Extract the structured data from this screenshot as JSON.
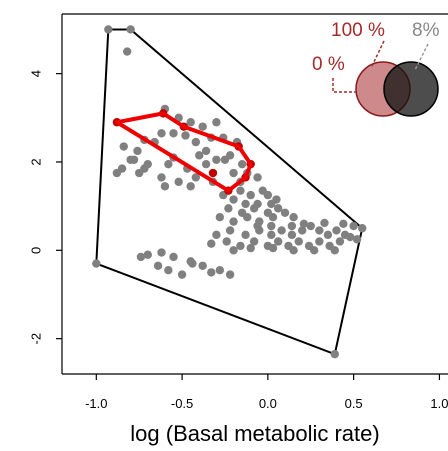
{
  "chart_data": {
    "type": "scatter",
    "title": "",
    "xlabel": "log (Basal metabolic rate)",
    "ylabel": "",
    "xlim": [
      -1.2,
      1.05
    ],
    "ylim": [
      -2.8,
      5.35
    ],
    "x_ticks": [
      -1.0,
      -0.5,
      0.0,
      0.5,
      1.0
    ],
    "x_tick_labels": [
      "-1.0",
      "-0.5",
      "0.0",
      "0.5",
      "1.0"
    ],
    "y_ticks": [
      -2,
      0,
      2,
      4
    ],
    "y_tick_labels": [
      "-2",
      "0",
      "2",
      "4"
    ],
    "grid": false,
    "colors": {
      "all_points": "#808080",
      "subset_hull": "#ee0000",
      "subset_points": "#c00000",
      "full_hull": "#000000",
      "legend_red": "#a52a2a",
      "legend_gray": "#555555"
    },
    "series": [
      {
        "points": [
          [
            -0.93,
            5.0
          ],
          [
            -0.8,
            5.0
          ],
          [
            -0.82,
            4.5
          ],
          [
            -0.72,
            2.5
          ],
          [
            -0.6,
            3.2
          ],
          [
            -0.52,
            3.0
          ],
          [
            -0.45,
            2.9
          ],
          [
            -0.38,
            2.8
          ],
          [
            -0.3,
            2.9
          ],
          [
            -0.62,
            2.65
          ],
          [
            -0.55,
            2.65
          ],
          [
            -0.48,
            2.6
          ],
          [
            -0.33,
            2.55
          ],
          [
            -0.26,
            2.55
          ],
          [
            -0.18,
            2.45
          ],
          [
            -0.42,
            2.45
          ],
          [
            -0.66,
            2.45
          ],
          [
            -0.84,
            2.35
          ],
          [
            -0.76,
            2.25
          ],
          [
            -0.36,
            2.25
          ],
          [
            -0.22,
            2.15
          ],
          [
            -0.8,
            2.05
          ],
          [
            -0.7,
            1.95
          ],
          [
            -0.58,
            1.95
          ],
          [
            -0.47,
            1.85
          ],
          [
            -0.36,
            1.95
          ],
          [
            -0.25,
            2.05
          ],
          [
            -0.15,
            1.95
          ],
          [
            -0.85,
            1.85
          ],
          [
            -0.75,
            1.75
          ],
          [
            -0.62,
            1.65
          ],
          [
            -0.52,
            1.55
          ],
          [
            -0.42,
            1.65
          ],
          [
            -0.32,
            1.55
          ],
          [
            -0.72,
            1.85
          ],
          [
            -0.6,
            1.45
          ],
          [
            -0.45,
            1.45
          ],
          [
            -0.88,
            1.75
          ],
          [
            -0.78,
            2.05
          ],
          [
            -0.55,
            2.1
          ],
          [
            -0.4,
            2.15
          ],
          [
            -0.3,
            2.05
          ],
          [
            -0.2,
            1.75
          ],
          [
            -0.12,
            1.75
          ],
          [
            -0.06,
            1.65
          ],
          [
            -0.16,
            1.55
          ],
          [
            -0.26,
            1.25
          ],
          [
            -0.16,
            1.35
          ],
          [
            -0.1,
            1.25
          ],
          [
            -0.03,
            1.35
          ],
          [
            0.0,
            1.25
          ],
          [
            -0.2,
            1.15
          ],
          [
            -0.13,
            1.05
          ],
          [
            -0.06,
            1.05
          ],
          [
            0.02,
            1.05
          ],
          [
            0.05,
            1.15
          ],
          [
            -0.23,
            0.95
          ],
          [
            -0.15,
            0.85
          ],
          [
            -0.08,
            0.95
          ],
          [
            0.0,
            0.85
          ],
          [
            0.06,
            0.95
          ],
          [
            -0.28,
            0.75
          ],
          [
            -0.2,
            0.65
          ],
          [
            -0.12,
            0.75
          ],
          [
            -0.05,
            0.65
          ],
          [
            0.03,
            0.75
          ],
          [
            0.1,
            0.85
          ],
          [
            0.15,
            0.75
          ],
          [
            -0.3,
            0.35
          ],
          [
            -0.22,
            0.45
          ],
          [
            -0.13,
            0.35
          ],
          [
            -0.05,
            0.45
          ],
          [
            0.02,
            0.35
          ],
          [
            0.08,
            0.45
          ],
          [
            0.14,
            0.35
          ],
          [
            0.2,
            0.45
          ],
          [
            0.25,
            0.55
          ],
          [
            0.3,
            0.45
          ],
          [
            0.35,
            0.35
          ],
          [
            0.4,
            0.45
          ],
          [
            0.45,
            0.35
          ],
          [
            0.5,
            0.55
          ],
          [
            0.55,
            0.5
          ],
          [
            -0.33,
            0.15
          ],
          [
            -0.24,
            0.2
          ],
          [
            -0.16,
            0.1
          ],
          [
            -0.08,
            0.2
          ],
          [
            0.0,
            0.1
          ],
          [
            0.06,
            0.2
          ],
          [
            0.12,
            0.1
          ],
          [
            0.18,
            0.2
          ],
          [
            0.24,
            0.1
          ],
          [
            0.3,
            0.2
          ],
          [
            0.36,
            0.1
          ],
          [
            0.42,
            0.2
          ],
          [
            0.48,
            0.3
          ],
          [
            0.52,
            0.25
          ],
          [
            0.39,
            0.0
          ],
          [
            0.27,
            0.0
          ],
          [
            0.15,
            0.0
          ],
          [
            0.03,
            0.05
          ],
          [
            -0.1,
            0.05
          ],
          [
            -0.2,
            0.0
          ],
          [
            0.21,
            0.6
          ],
          [
            0.33,
            0.62
          ],
          [
            0.44,
            0.6
          ],
          [
            0.14,
            0.55
          ],
          [
            0.02,
            0.55
          ],
          [
            -0.06,
            0.55
          ],
          [
            -0.55,
            -0.15
          ],
          [
            -0.62,
            -0.05
          ],
          [
            -0.7,
            -0.1
          ],
          [
            -0.45,
            -0.25
          ],
          [
            -0.38,
            -0.35
          ],
          [
            -0.28,
            -0.45
          ],
          [
            -0.22,
            -0.55
          ],
          [
            -0.33,
            -0.5
          ],
          [
            -0.64,
            -0.35
          ],
          [
            -0.58,
            -0.45
          ],
          [
            -0.5,
            -0.55
          ],
          [
            -0.74,
            -0.15
          ],
          [
            -0.44,
            -0.3
          ],
          [
            -1.0,
            -0.3
          ],
          [
            0.39,
            -2.35
          ]
        ]
      },
      {
        "points": [
          [
            -0.88,
            2.9
          ],
          [
            -0.61,
            3.1
          ],
          [
            -0.49,
            2.8
          ],
          [
            -0.17,
            2.35
          ],
          [
            -0.1,
            1.95
          ],
          [
            -0.13,
            1.65
          ],
          [
            -0.23,
            1.35
          ],
          [
            -0.32,
            1.75
          ]
        ]
      }
    ],
    "full_hull": [
      [
        -0.93,
        5.0
      ],
      [
        -0.8,
        5.0
      ],
      [
        0.55,
        0.5
      ],
      [
        0.39,
        -2.35
      ],
      [
        -1.0,
        -0.3
      ]
    ],
    "subset_hull": [
      [
        -0.88,
        2.9
      ],
      [
        -0.61,
        3.1
      ],
      [
        -0.49,
        2.8
      ],
      [
        -0.17,
        2.35
      ],
      [
        -0.1,
        1.95
      ],
      [
        -0.13,
        1.65
      ],
      [
        -0.23,
        1.35
      ]
    ],
    "legend": {
      "label_100": "100 %",
      "label_8": "8%",
      "label_0": "0 %"
    }
  }
}
